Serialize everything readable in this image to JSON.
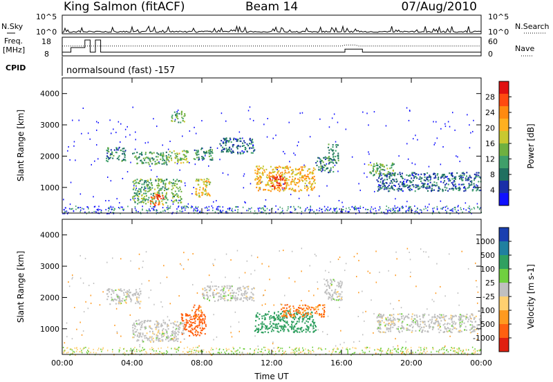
{
  "header": {
    "station": "King Salmon (fitACF)",
    "beam": "Beam 14",
    "date": "07/Aug/2010"
  },
  "labels": {
    "nsky": "N.Sky",
    "nsearch": "N.Search",
    "freq_line1": "Freq.",
    "freq_line2": "[MHz]",
    "nave": "Nave",
    "cpid": "CPID",
    "program": "normalsound (fast) -157"
  },
  "noise_axis": {
    "left_ticks": [
      "10^5",
      "10^0"
    ],
    "right_ticks": [
      "10^5",
      "10^0"
    ]
  },
  "freq_axis": {
    "left_ticks": [
      "18",
      "8"
    ],
    "right_ticks": [
      "60",
      "0"
    ]
  },
  "power_colorbar": {
    "label": "Power [dB]",
    "ticks": [
      "28",
      "24",
      "20",
      "16",
      "12",
      "8",
      "4"
    ],
    "colors": [
      "#e01010",
      "#ff4a10",
      "#ff8a10",
      "#ffb020",
      "#c8c830",
      "#6fb040",
      "#3f9f6a",
      "#207060",
      "#1a2fa8",
      "#1010ff"
    ]
  },
  "velocity_colorbar": {
    "label": "Velocity [m s-1]",
    "ticks": [
      "1000",
      "500",
      "100",
      "25",
      "-25",
      "-100",
      "-500",
      "-1000"
    ],
    "colors": [
      "#1a3fb0",
      "#2080a0",
      "#30a060",
      "#70d040",
      "#c0c0c0",
      "#ffd070",
      "#ff9a20",
      "#ff6010",
      "#e02010"
    ]
  },
  "chart_data": [
    {
      "type": "heatmap",
      "title": "",
      "xlabel": "",
      "ylabel": "Slant Range [km]",
      "ylim": [
        180,
        4500
      ],
      "yticks": [
        "4000",
        "3000",
        "2000",
        "1000"
      ],
      "xticks": [
        "00:00",
        "04:00",
        "08:00",
        "12:00",
        "16:00",
        "20:00",
        "00:00"
      ],
      "xlim": [
        "00:00",
        "24:00"
      ],
      "parameter": "power",
      "echo_regions": [
        {
          "t": [
            6.2,
            7.0
          ],
          "r": [
            3100,
            3450
          ],
          "value": 12
        },
        {
          "t": [
            2.5,
            3.6
          ],
          "r": [
            1850,
            2300
          ],
          "value": 8
        },
        {
          "t": [
            4.0,
            6.0
          ],
          "r": [
            1750,
            2150
          ],
          "value": 10
        },
        {
          "t": [
            6.0,
            7.2
          ],
          "r": [
            1800,
            2200
          ],
          "value": 14
        },
        {
          "t": [
            7.5,
            8.6
          ],
          "r": [
            1900,
            2300
          ],
          "value": 8
        },
        {
          "t": [
            9.0,
            11.0
          ],
          "r": [
            2100,
            2600
          ],
          "value": 6
        },
        {
          "t": [
            4.0,
            6.8
          ],
          "r": [
            500,
            1300
          ],
          "value": 12
        },
        {
          "t": [
            5.0,
            5.8
          ],
          "r": [
            450,
            800
          ],
          "value": 26
        },
        {
          "t": [
            7.6,
            8.5
          ],
          "r": [
            700,
            1300
          ],
          "value": 18
        },
        {
          "t": [
            11.0,
            14.5
          ],
          "r": [
            900,
            1700
          ],
          "value": 20
        },
        {
          "t": [
            11.8,
            12.8
          ],
          "r": [
            1000,
            1400
          ],
          "value": 28
        },
        {
          "t": [
            14.5,
            15.5
          ],
          "r": [
            1500,
            2000
          ],
          "value": 8
        },
        {
          "t": [
            15.2,
            15.8
          ],
          "r": [
            1800,
            2400
          ],
          "value": 10
        },
        {
          "t": [
            17.5,
            19.0
          ],
          "r": [
            1400,
            1800
          ],
          "value": 12
        },
        {
          "t": [
            18.0,
            24.0
          ],
          "r": [
            900,
            1500
          ],
          "value": 6
        }
      ]
    },
    {
      "type": "heatmap",
      "title": "",
      "xlabel": "Time UT",
      "ylabel": "Slant Range [km]",
      "ylim": [
        180,
        4500
      ],
      "yticks": [
        "4000",
        "3000",
        "2000",
        "1000"
      ],
      "xticks": [
        "00:00",
        "04:00",
        "08:00",
        "12:00",
        "16:00",
        "20:00",
        "00:00"
      ],
      "xlim": [
        "00:00",
        "24:00"
      ],
      "parameter": "velocity",
      "echo_regions": [
        {
          "t": [
            2.5,
            4.5
          ],
          "r": [
            1800,
            2300
          ],
          "value": 0
        },
        {
          "t": [
            4.0,
            7.0
          ],
          "r": [
            600,
            1300
          ],
          "value": 0
        },
        {
          "t": [
            6.8,
            8.2
          ],
          "r": [
            800,
            1500
          ],
          "value": -400
        },
        {
          "t": [
            7.4,
            8.0
          ],
          "r": [
            1300,
            1800
          ],
          "value": -300
        },
        {
          "t": [
            8.0,
            11.0
          ],
          "r": [
            1900,
            2400
          ],
          "value": 0
        },
        {
          "t": [
            11.0,
            14.5
          ],
          "r": [
            900,
            1600
          ],
          "value": 100
        },
        {
          "t": [
            12.5,
            15.0
          ],
          "r": [
            1400,
            1800
          ],
          "value": -300
        },
        {
          "t": [
            15.0,
            16.0
          ],
          "r": [
            1900,
            2600
          ],
          "value": 0
        },
        {
          "t": [
            18.0,
            24.0
          ],
          "r": [
            900,
            1500
          ],
          "value": 0
        }
      ]
    }
  ]
}
